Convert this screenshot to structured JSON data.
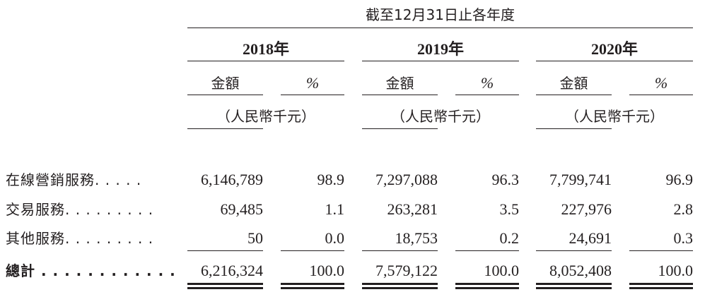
{
  "header": {
    "period": "截至12月31日止各年度",
    "columns": [
      {
        "year": "2018年",
        "amount": "金額",
        "percent": "%",
        "unit": "（人民幣千元）"
      },
      {
        "year": "2019年",
        "amount": "金額",
        "percent": "%",
        "unit": "（人民幣千元）"
      },
      {
        "year": "2020年",
        "amount": "金額",
        "percent": "%",
        "unit": "（人民幣千元）"
      }
    ]
  },
  "table": {
    "rows": [
      [
        "在線營銷服務. . . . .",
        "6,146,789",
        "98.9",
        "7,297,088",
        "96.3",
        "7,799,741",
        "96.9"
      ],
      [
        "交易服務. . . . . . . . .",
        "69,485",
        "1.1",
        "263,281",
        "3.5",
        "227,976",
        "2.8"
      ],
      [
        "其他服務. . . . . . . . .",
        "50",
        "0.0",
        "18,753",
        "0.2",
        "24,691",
        "0.3"
      ],
      [
        "總計 . . . . . . . . . . . .",
        "6,216,324",
        "100.0",
        "7,579,122",
        "100.0",
        "8,052,408",
        "100.0"
      ]
    ]
  }
}
